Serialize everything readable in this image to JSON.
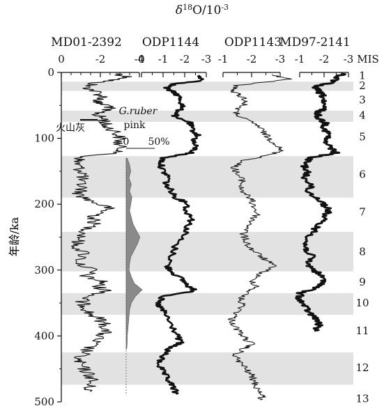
{
  "chart_data": {
    "type": "line",
    "title": "δ¹⁸O/10⁻³",
    "title_parts": {
      "symbol": "δ",
      "sup1": "18",
      "mid": "O/10",
      "sup2": "-3"
    },
    "ylabel": "年龄/ka",
    "ylim": [
      0,
      500
    ],
    "y_ticks": [
      "0",
      "100",
      "200",
      "300",
      "400",
      "500"
    ],
    "y_tick_values": [
      0,
      100,
      200,
      300,
      400,
      500
    ],
    "mis_label": "MIS",
    "mis_stages": [
      {
        "label": "1",
        "age": 5
      },
      {
        "label": "2",
        "age": 20
      },
      {
        "label": "3",
        "age": 42
      },
      {
        "label": "4",
        "age": 65
      },
      {
        "label": "5",
        "age": 98
      },
      {
        "label": "6",
        "age": 155
      },
      {
        "label": "7",
        "age": 212
      },
      {
        "label": "8",
        "age": 272
      },
      {
        "label": "9",
        "age": 318
      },
      {
        "label": "10",
        "age": 350
      },
      {
        "label": "11",
        "age": 392
      },
      {
        "label": "12",
        "age": 448
      },
      {
        "label": "13",
        "age": 495
      }
    ],
    "glacial_bands": [
      [
        14,
        28
      ],
      [
        58,
        75
      ],
      [
        127,
        190
      ],
      [
        242,
        302
      ],
      [
        335,
        368
      ],
      [
        425,
        474
      ]
    ],
    "annotations": {
      "ash": "火山灰",
      "ash_age": 72,
      "g_ruber": "G.ruber",
      "pink": "pink",
      "pink_scale": [
        "0",
        "50%"
      ],
      "pink_profile": [
        [
          130,
          2
        ],
        [
          140,
          6
        ],
        [
          150,
          8
        ],
        [
          160,
          5
        ],
        [
          170,
          9
        ],
        [
          180,
          6
        ],
        [
          190,
          10
        ],
        [
          200,
          8
        ],
        [
          210,
          6
        ],
        [
          220,
          9
        ],
        [
          230,
          12
        ],
        [
          240,
          18
        ],
        [
          250,
          24
        ],
        [
          260,
          20
        ],
        [
          270,
          14
        ],
        [
          280,
          8
        ],
        [
          290,
          6
        ],
        [
          300,
          5
        ],
        [
          310,
          9
        ],
        [
          320,
          14
        ],
        [
          330,
          28
        ],
        [
          340,
          16
        ],
        [
          350,
          9
        ],
        [
          360,
          6
        ],
        [
          370,
          5
        ],
        [
          380,
          4
        ],
        [
          390,
          3
        ],
        [
          400,
          2
        ],
        [
          410,
          2
        ],
        [
          420,
          1
        ]
      ]
    },
    "series": [
      {
        "name": "MD01-2392",
        "x_range": [
          0,
          -4
        ],
        "x_ticks": [
          "0",
          "-2",
          "-4"
        ],
        "x_tick_values": [
          0,
          -2,
          -4
        ],
        "points": [
          [
            2,
            -2.9
          ],
          [
            8,
            -3.5
          ],
          [
            15,
            -1.8
          ],
          [
            22,
            -1.3
          ],
          [
            30,
            -1.8
          ],
          [
            38,
            -2.2
          ],
          [
            45,
            -1.7
          ],
          [
            52,
            -2.6
          ],
          [
            58,
            -2.1
          ],
          [
            65,
            -1.8
          ],
          [
            72,
            -2.3
          ],
          [
            80,
            -2.2
          ],
          [
            90,
            -2.8
          ],
          [
            100,
            -3.0
          ],
          [
            110,
            -2.9
          ],
          [
            120,
            -3.2
          ],
          [
            128,
            -1.1
          ],
          [
            135,
            -0.8
          ],
          [
            145,
            -0.9
          ],
          [
            155,
            -1.2
          ],
          [
            165,
            -0.9
          ],
          [
            175,
            -1.1
          ],
          [
            185,
            -0.9
          ],
          [
            195,
            -1.5
          ],
          [
            205,
            -2.4
          ],
          [
            212,
            -2.1
          ],
          [
            220,
            -1.6
          ],
          [
            228,
            -1.7
          ],
          [
            240,
            -1.3
          ],
          [
            252,
            -1.0
          ],
          [
            262,
            -0.7
          ],
          [
            275,
            -1.2
          ],
          [
            290,
            -0.9
          ],
          [
            300,
            -1.6
          ],
          [
            310,
            -1.2
          ],
          [
            318,
            -2.2
          ],
          [
            325,
            -1.8
          ],
          [
            332,
            -2.4
          ],
          [
            340,
            -1.4
          ],
          [
            348,
            -1.0
          ],
          [
            356,
            -1.3
          ],
          [
            365,
            -1.4
          ],
          [
            375,
            -2.0
          ],
          [
            385,
            -2.3
          ],
          [
            395,
            -2.2
          ],
          [
            405,
            -1.8
          ],
          [
            415,
            -1.5
          ],
          [
            425,
            -1.2
          ],
          [
            435,
            -0.8
          ],
          [
            445,
            -1.0
          ],
          [
            455,
            -1.3
          ],
          [
            465,
            -1.6
          ],
          [
            475,
            -1.4
          ],
          [
            485,
            -1.5
          ]
        ]
      },
      {
        "name": "ODP1144",
        "x_range": [
          0,
          -3
        ],
        "x_ticks": [
          "0",
          "-1",
          "-2",
          "-3"
        ],
        "x_tick_values": [
          0,
          -1,
          -2,
          -3
        ],
        "points": [
          [
            5,
            -2.6
          ],
          [
            12,
            -2.9
          ],
          [
            18,
            -1.5
          ],
          [
            24,
            -1.1
          ],
          [
            32,
            -1.6
          ],
          [
            40,
            -1.8
          ],
          [
            50,
            -1.9
          ],
          [
            60,
            -1.7
          ],
          [
            68,
            -1.5
          ],
          [
            75,
            -2.2
          ],
          [
            85,
            -2.3
          ],
          [
            95,
            -2.6
          ],
          [
            105,
            -2.4
          ],
          [
            115,
            -2.5
          ],
          [
            122,
            -2.3
          ],
          [
            130,
            -1.0
          ],
          [
            140,
            -0.9
          ],
          [
            150,
            -1.0
          ],
          [
            160,
            -1.3
          ],
          [
            170,
            -1.1
          ],
          [
            180,
            -1.4
          ],
          [
            190,
            -1.6
          ],
          [
            200,
            -2.2
          ],
          [
            210,
            -2.0
          ],
          [
            220,
            -2.4
          ],
          [
            230,
            -2.2
          ],
          [
            245,
            -2.0
          ],
          [
            260,
            -1.6
          ],
          [
            280,
            -1.4
          ],
          [
            295,
            -1.2
          ],
          [
            305,
            -1.5
          ],
          [
            315,
            -1.9
          ],
          [
            325,
            -2.2
          ],
          [
            332,
            -2.5
          ],
          [
            340,
            -1.0
          ],
          [
            350,
            -0.7
          ],
          [
            358,
            -0.9
          ],
          [
            366,
            -1.1
          ],
          [
            380,
            -1.3
          ],
          [
            395,
            -1.6
          ],
          [
            410,
            -1.8
          ],
          [
            418,
            -1.3
          ],
          [
            430,
            -1.0
          ],
          [
            440,
            -0.8
          ],
          [
            450,
            -0.9
          ],
          [
            460,
            -1.1
          ],
          [
            470,
            -1.3
          ],
          [
            480,
            -1.5
          ],
          [
            488,
            -1.6
          ]
        ]
      },
      {
        "name": "ODP1143",
        "x_range": [
          -1,
          -3
        ],
        "x_ticks": [
          "-1",
          "-2",
          "-3"
        ],
        "x_tick_values": [
          -1,
          -2,
          -3
        ],
        "points": [
          [
            3,
            -2.7
          ],
          [
            10,
            -3.3
          ],
          [
            20,
            -1.5
          ],
          [
            28,
            -1.3
          ],
          [
            35,
            -1.6
          ],
          [
            42,
            -1.8
          ],
          [
            50,
            -1.7
          ],
          [
            60,
            -1.4
          ],
          [
            70,
            -1.7
          ],
          [
            80,
            -2.2
          ],
          [
            90,
            -2.4
          ],
          [
            100,
            -2.6
          ],
          [
            110,
            -2.9
          ],
          [
            120,
            -3.0
          ],
          [
            128,
            -2.4
          ],
          [
            135,
            -1.6
          ],
          [
            145,
            -1.4
          ],
          [
            155,
            -1.5
          ],
          [
            165,
            -1.7
          ],
          [
            175,
            -1.6
          ],
          [
            185,
            -1.8
          ],
          [
            195,
            -2.0
          ],
          [
            205,
            -2.1
          ],
          [
            215,
            -2.2
          ],
          [
            225,
            -2.0
          ],
          [
            235,
            -1.9
          ],
          [
            245,
            -1.7
          ],
          [
            255,
            -1.8
          ],
          [
            265,
            -1.9
          ],
          [
            275,
            -2.2
          ],
          [
            285,
            -2.5
          ],
          [
            295,
            -2.8
          ],
          [
            305,
            -2.3
          ],
          [
            315,
            -2.0
          ],
          [
            325,
            -2.2
          ],
          [
            335,
            -1.8
          ],
          [
            345,
            -1.6
          ],
          [
            355,
            -1.7
          ],
          [
            365,
            -1.5
          ],
          [
            375,
            -1.3
          ],
          [
            385,
            -1.4
          ],
          [
            395,
            -1.6
          ],
          [
            405,
            -1.8
          ],
          [
            412,
            -2.0
          ],
          [
            420,
            -1.7
          ],
          [
            430,
            -1.4
          ],
          [
            440,
            -1.6
          ],
          [
            450,
            -1.8
          ],
          [
            460,
            -2.0
          ],
          [
            470,
            -2.1
          ],
          [
            480,
            -2.2
          ],
          [
            490,
            -2.4
          ],
          [
            497,
            -2.3
          ]
        ]
      },
      {
        "name": "MD97-2141",
        "x_range": [
          -1,
          -3
        ],
        "x_ticks": [
          "-1",
          "-2",
          "-3"
        ],
        "x_tick_values": [
          -1,
          -2,
          -3
        ],
        "points": [
          [
            2,
            -2.8
          ],
          [
            8,
            -2.5
          ],
          [
            15,
            -2.3
          ],
          [
            22,
            -1.6
          ],
          [
            30,
            -1.8
          ],
          [
            38,
            -2.0
          ],
          [
            45,
            -1.9
          ],
          [
            55,
            -2.0
          ],
          [
            62,
            -1.7
          ],
          [
            70,
            -1.8
          ],
          [
            78,
            -2.1
          ],
          [
            85,
            -2.0
          ],
          [
            95,
            -2.2
          ],
          [
            105,
            -2.0
          ],
          [
            115,
            -2.3
          ],
          [
            122,
            -2.5
          ],
          [
            130,
            -1.4
          ],
          [
            140,
            -1.2
          ],
          [
            150,
            -1.3
          ],
          [
            160,
            -1.2
          ],
          [
            170,
            -1.5
          ],
          [
            180,
            -1.3
          ],
          [
            190,
            -1.7
          ],
          [
            200,
            -2.0
          ],
          [
            210,
            -2.2
          ],
          [
            220,
            -2.0
          ],
          [
            230,
            -1.8
          ],
          [
            240,
            -1.6
          ],
          [
            250,
            -1.4
          ],
          [
            260,
            -1.2
          ],
          [
            270,
            -1.3
          ],
          [
            280,
            -1.5
          ],
          [
            290,
            -1.3
          ],
          [
            300,
            -1.6
          ],
          [
            310,
            -1.9
          ],
          [
            320,
            -2.0
          ],
          [
            328,
            -1.6
          ],
          [
            335,
            -1.0
          ],
          [
            345,
            -1.0
          ],
          [
            355,
            -1.2
          ],
          [
            365,
            -1.4
          ],
          [
            375,
            -1.7
          ],
          [
            385,
            -1.8
          ],
          [
            392,
            -1.6
          ]
        ]
      }
    ]
  }
}
